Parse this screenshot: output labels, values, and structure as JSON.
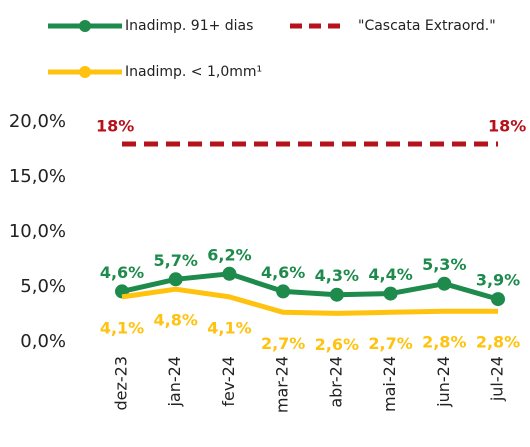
{
  "chart_data": {
    "type": "line",
    "categories": [
      "dez-23",
      "jan-24",
      "fev-24",
      "mar-24",
      "abr-24",
      "mai-24",
      "jun-24",
      "jul-24"
    ],
    "series": [
      {
        "name": "Inadimp. 91+ dias",
        "color": "#1e8a4c",
        "marker": true,
        "dashed": false,
        "values": [
          4.6,
          5.7,
          6.2,
          4.6,
          4.3,
          4.4,
          5.3,
          3.9
        ],
        "value_labels": [
          "4,6%",
          "5,7%",
          "6,2%",
          "4,6%",
          "4,3%",
          "4,4%",
          "5,3%",
          "3,9%"
        ]
      },
      {
        "name": "\"Cascata Extraord.\"",
        "color": "#b5121b",
        "marker": false,
        "dashed": true,
        "values": [
          18,
          18,
          18,
          18,
          18,
          18,
          18,
          18
        ],
        "value_labels": [
          "18%",
          null,
          null,
          null,
          null,
          null,
          null,
          "18%"
        ]
      },
      {
        "name": "Inadimp. < 1,0mm¹",
        "color": "#ffc20e",
        "marker": false,
        "dashed": false,
        "values": [
          4.1,
          4.8,
          4.1,
          2.7,
          2.6,
          2.7,
          2.8,
          2.8
        ],
        "value_labels": [
          "4,1%",
          "4,8%",
          "4,1%",
          "2,7%",
          "2,6%",
          "2,7%",
          "2,8%",
          "2,8%"
        ]
      }
    ],
    "ylim": [
      0,
      20
    ],
    "yticks": [
      {
        "value": 0,
        "label": "0,0%"
      },
      {
        "value": 5,
        "label": "5,0%"
      },
      {
        "value": 10,
        "label": "10,0%"
      },
      {
        "value": 15,
        "label": "15,0%"
      },
      {
        "value": 20,
        "label": "20,0%"
      }
    ],
    "grid": false
  }
}
